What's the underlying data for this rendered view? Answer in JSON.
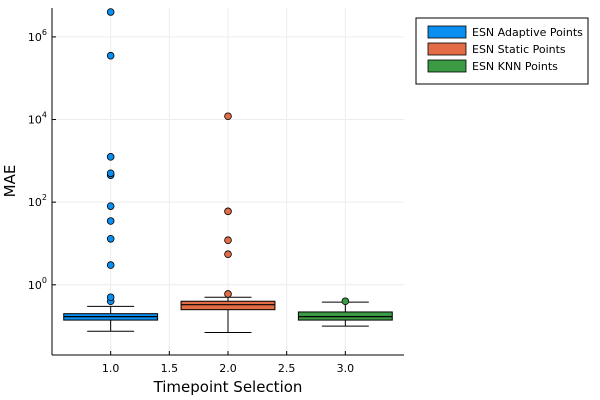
{
  "chart_data": {
    "type": "box",
    "xlabel": "Timepoint Selection",
    "ylabel": "MAE",
    "yscale": "log10",
    "ylim": [
      0.02,
      5000000
    ],
    "xlim": [
      0.5,
      3.5
    ],
    "xticks": [
      1.0,
      1.5,
      2.0,
      2.5,
      3.0
    ],
    "xtick_labels": [
      "1.0",
      "1.5",
      "2.0",
      "2.5",
      "3.0"
    ],
    "yticks": [
      1,
      100,
      10000,
      1000000
    ],
    "ytick_labels": [
      {
        "base": "10",
        "exp": "0"
      },
      {
        "base": "10",
        "exp": "2"
      },
      {
        "base": "10",
        "exp": "4"
      },
      {
        "base": "10",
        "exp": "6"
      }
    ],
    "grid": true,
    "legend_position": "outer top-right",
    "series": [
      {
        "name": "ESN Adaptive Points",
        "color": "#0a8ff0",
        "x": 1.0,
        "whisker_low": 0.075,
        "q1": 0.14,
        "median": 0.17,
        "q3": 0.2,
        "whisker_high": 0.3,
        "outliers": [
          0.4,
          0.5,
          3.0,
          13.0,
          35.0,
          80.0,
          450.0,
          500.0,
          1250.0,
          350000.0,
          4000000.0
        ]
      },
      {
        "name": "ESN Static Points",
        "color": "#e26c45",
        "x": 2.0,
        "whisker_low": 0.07,
        "q1": 0.25,
        "median": 0.33,
        "q3": 0.4,
        "whisker_high": 0.5,
        "outliers": [
          0.6,
          5.5,
          12.0,
          60.0,
          12000.0
        ]
      },
      {
        "name": "ESN KNN Points",
        "color": "#3b9a43",
        "x": 3.0,
        "whisker_low": 0.1,
        "q1": 0.14,
        "median": 0.17,
        "q3": 0.22,
        "whisker_high": 0.38,
        "outliers": [
          0.4
        ]
      }
    ]
  }
}
